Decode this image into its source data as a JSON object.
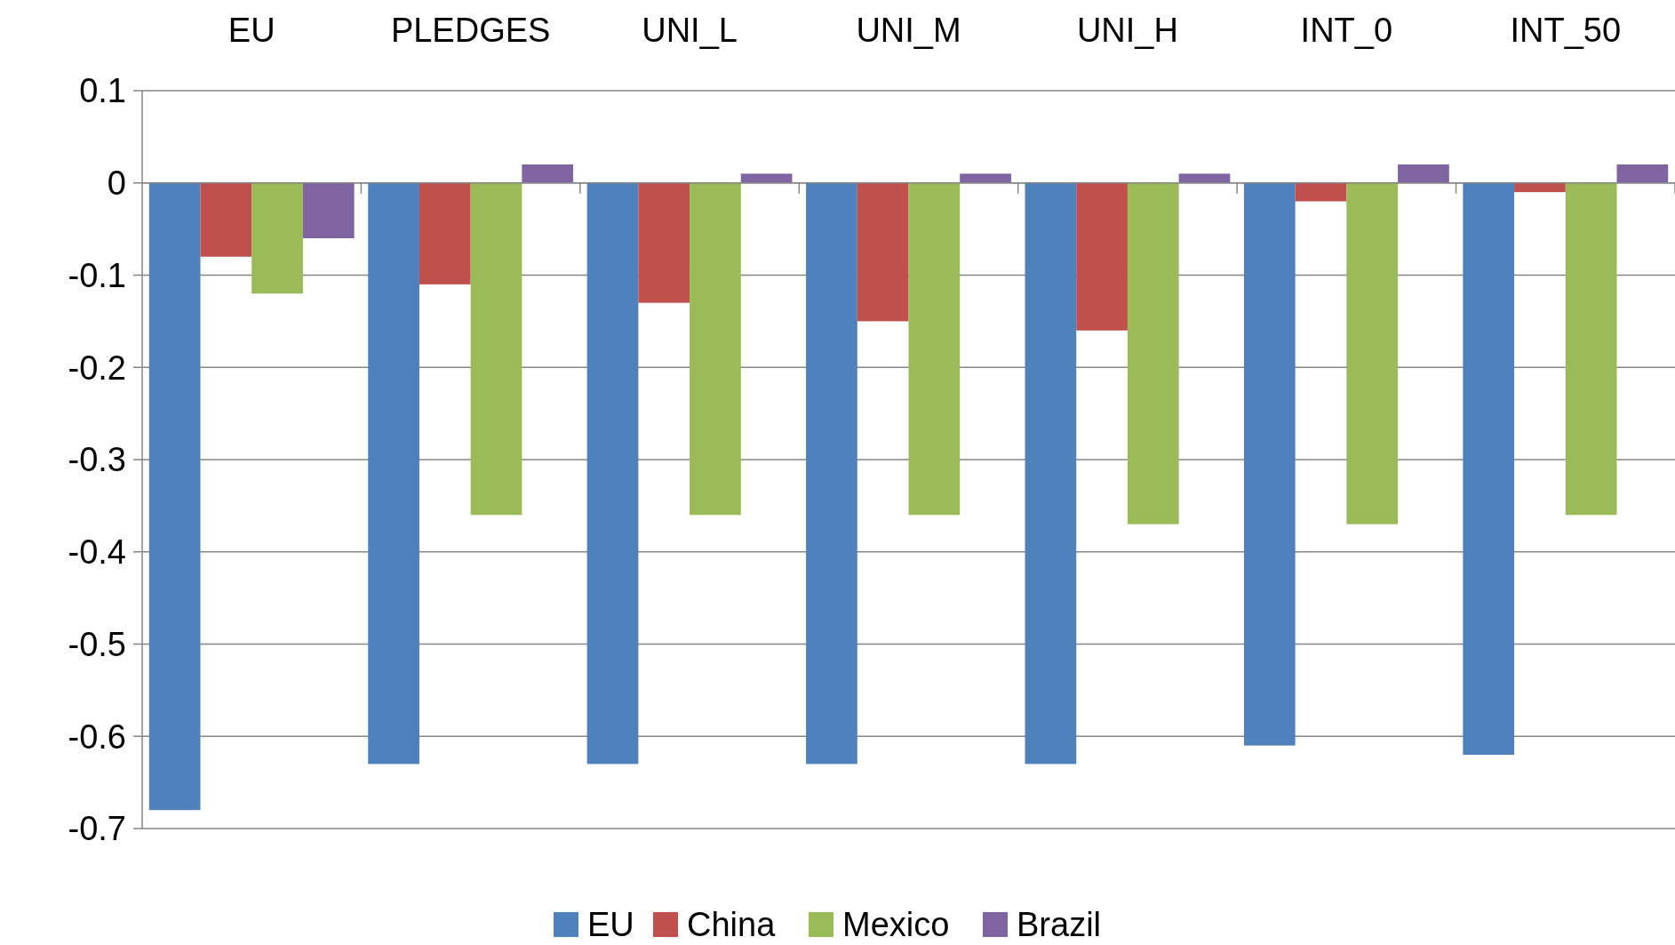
{
  "chart_data": {
    "type": "bar",
    "categories": [
      "EU",
      "PLEDGES",
      "UNI_L",
      "UNI_M",
      "UNI_H",
      "INT_0",
      "INT_50"
    ],
    "series": [
      {
        "name": "EU",
        "color": "#4f81bd",
        "values": [
          -0.68,
          -0.63,
          -0.63,
          -0.63,
          -0.63,
          -0.61,
          -0.62
        ]
      },
      {
        "name": "China",
        "color": "#c0504d",
        "values": [
          -0.08,
          -0.11,
          -0.13,
          -0.15,
          -0.16,
          -0.02,
          -0.01
        ]
      },
      {
        "name": "Mexico",
        "color": "#9bbb59",
        "values": [
          -0.12,
          -0.36,
          -0.36,
          -0.36,
          -0.37,
          -0.37,
          -0.36
        ]
      },
      {
        "name": "Brazil",
        "color": "#8064a2",
        "values": [
          -0.06,
          0.02,
          0.01,
          0.01,
          0.01,
          0.02,
          0.02
        ]
      }
    ],
    "ylim": [
      -0.7,
      0.1
    ],
    "yticks": [
      0.1,
      0,
      -0.1,
      -0.2,
      -0.3,
      -0.4,
      -0.5,
      -0.6,
      -0.7
    ],
    "grid": "y",
    "legend": "bottom"
  }
}
